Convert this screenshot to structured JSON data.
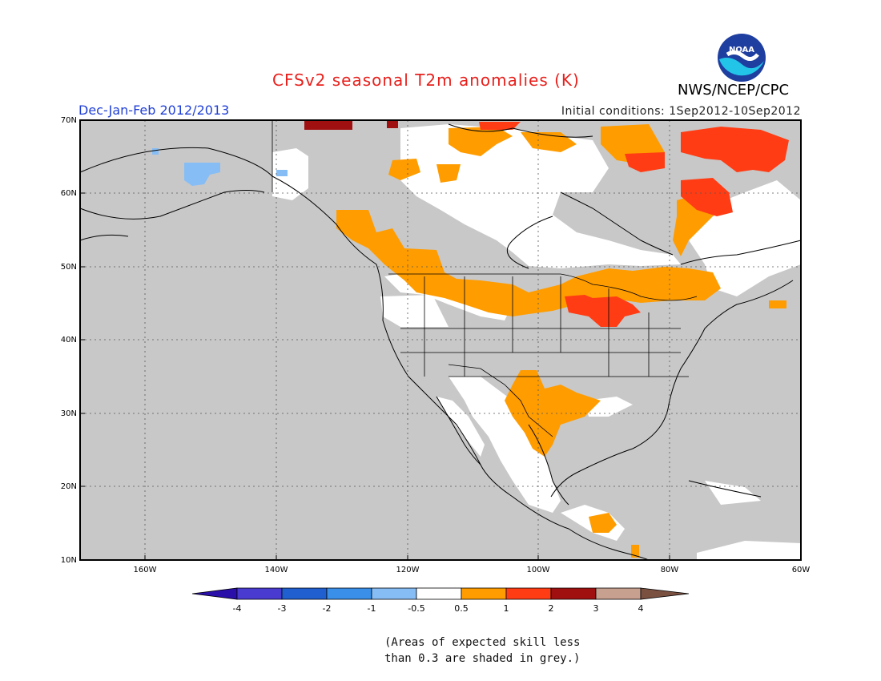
{
  "header": {
    "title": "CFSv2 seasonal T2m anomalies (K)",
    "period": "Dec-Jan-Feb 2012/2013",
    "initial_conditions": "Initial conditions: 1Sep2012-10Sep2012",
    "agency": "NWS/NCEP/CPC",
    "logo_text": "NOAA"
  },
  "map": {
    "lat_labels": [
      "70N",
      "60N",
      "50N",
      "40N",
      "30N",
      "20N",
      "10N"
    ],
    "lon_labels": [
      "160W",
      "140W",
      "120W",
      "100W",
      "80W",
      "60W"
    ],
    "lat_range": [
      10,
      70
    ],
    "lon_range": [
      -171,
      -60
    ],
    "background_color": "#c8c8c8",
    "gridlines": "dotted"
  },
  "colorbar": {
    "labels": [
      "-4",
      "-3",
      "-2",
      "-1",
      "-0.5",
      "0.5",
      "1",
      "2",
      "3",
      "4"
    ],
    "colors": [
      "#2a0fa8",
      "#4a3bd0",
      "#1f5fd0",
      "#3a8fe8",
      "#86bdf5",
      "#ffffff",
      "#ff9c00",
      "#ff3c14",
      "#a01010",
      "#c8a090",
      "#7a5040"
    ]
  },
  "footnote": {
    "line1": "(Areas of expected skill less",
    "line2": "than 0.3 are shaded in grey.)"
  }
}
